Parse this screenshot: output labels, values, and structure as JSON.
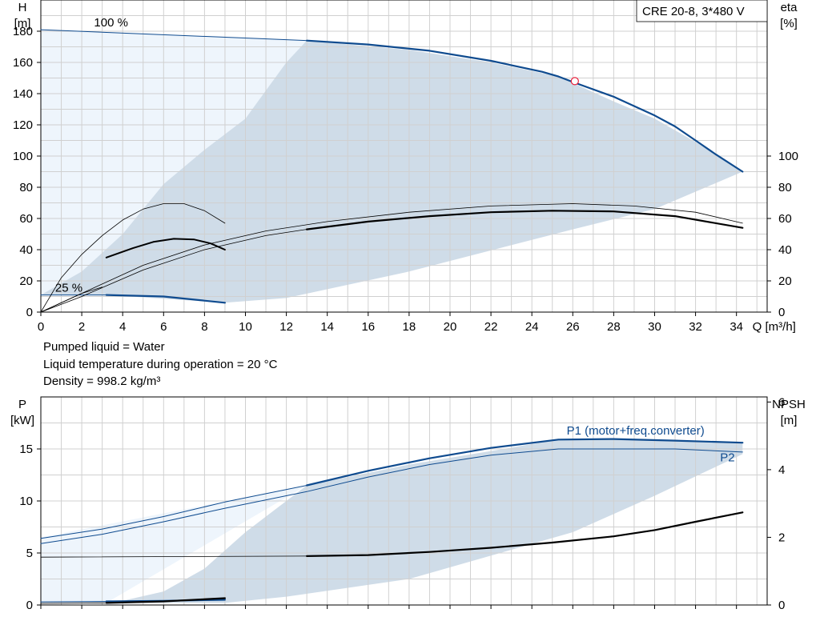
{
  "info_lines": [
    "Pumped liquid = Water",
    "Liquid temperature during operation = 20 °C",
    "Density = 998.2 kg/m³"
  ],
  "chart_data": [
    {
      "id": "head-efficiency",
      "type": "line",
      "title": "CRE 20-8, 3*480 V",
      "x_label": "Q [m³/h]",
      "x_lim": [
        0,
        35.5
      ],
      "x_ticks": [
        0,
        2,
        4,
        6,
        8,
        10,
        12,
        14,
        16,
        18,
        20,
        22,
        24,
        26,
        28,
        30,
        32,
        34
      ],
      "y_left_label": [
        "H",
        "[m]"
      ],
      "y_left_lim": [
        0,
        200
      ],
      "y_left_ticks": [
        0,
        20,
        40,
        60,
        80,
        100,
        120,
        140,
        160,
        180
      ],
      "y_right_label": [
        "eta",
        "[%]"
      ],
      "y_right_ticks": [
        0,
        20,
        40,
        60,
        80,
        100
      ],
      "grid": true,
      "speed_labels": [
        {
          "text": "100 %",
          "x": 2.6,
          "y": 183
        },
        {
          "text": "25 %",
          "x": 0.7,
          "y": 13
        }
      ],
      "operating_point": {
        "x": 26.1,
        "y": 148
      },
      "shaded_region": [
        [
          0,
          181
        ],
        [
          13,
          174
        ],
        [
          12,
          160
        ],
        [
          10,
          124
        ],
        [
          8,
          104
        ],
        [
          6,
          82
        ],
        [
          4,
          50
        ],
        [
          2,
          26
        ],
        [
          0,
          11
        ],
        [
          3.2,
          11
        ],
        [
          9,
          6
        ],
        [
          12,
          9
        ],
        [
          18,
          26
        ],
        [
          26,
          53
        ],
        [
          30,
          66
        ],
        [
          34.3,
          90
        ],
        [
          32,
          109
        ],
        [
          30,
          124
        ],
        [
          28,
          135
        ],
        [
          25.3,
          151
        ],
        [
          22,
          160
        ],
        [
          18,
          168
        ],
        [
          13,
          174
        ],
        [
          0,
          181
        ]
      ],
      "series": [
        {
          "role": "head-100-thin",
          "color": "#0f4b8f",
          "width": 1,
          "points": [
            [
              0,
              181
            ],
            [
              13,
              174
            ]
          ]
        },
        {
          "role": "head-100-operating",
          "color": "#0f4b8f",
          "width": 2.2,
          "points": [
            [
              13,
              174
            ],
            [
              16,
              171.5
            ],
            [
              19,
              167.5
            ],
            [
              22,
              161
            ],
            [
              24.5,
              154
            ],
            [
              25.3,
              151
            ],
            [
              26.1,
              147
            ],
            [
              28,
              138
            ],
            [
              30,
              126
            ],
            [
              31,
              119
            ],
            [
              32,
              110
            ],
            [
              33,
              101
            ],
            [
              34.3,
              90
            ]
          ]
        },
        {
          "role": "head-25-operating",
          "color": "#0f4b8f",
          "width": 2.2,
          "points": [
            [
              3.2,
              11
            ],
            [
              6,
              10
            ],
            [
              9,
              6
            ]
          ]
        },
        {
          "role": "head-25-thin",
          "color": "#0f4b8f",
          "width": 1,
          "points": [
            [
              0,
              11
            ],
            [
              3.2,
              11
            ]
          ]
        },
        {
          "role": "eta-25-thin",
          "color": "#000000",
          "width": 0.8,
          "points": [
            [
              0,
              0
            ],
            [
              1,
              22
            ],
            [
              2,
              37
            ],
            [
              3,
              49
            ],
            [
              4,
              59
            ],
            [
              5,
              66
            ],
            [
              6,
              69.5
            ],
            [
              7,
              69.5
            ],
            [
              8,
              65
            ],
            [
              9,
              57
            ]
          ]
        },
        {
          "role": "eta-25-operating",
          "color": "#000000",
          "width": 2,
          "points": [
            [
              3.2,
              35
            ],
            [
              4.5,
              41
            ],
            [
              5.5,
              45
            ],
            [
              6.5,
              47
            ],
            [
              7.5,
              46.5
            ],
            [
              8.3,
              44
            ],
            [
              9,
              40
            ]
          ]
        },
        {
          "role": "eta-25-low",
          "color": "#000000",
          "width": 0.8,
          "points": [
            [
              0,
              0
            ],
            [
              1,
              6
            ],
            [
              2,
              12
            ],
            [
              3,
              16
            ]
          ]
        },
        {
          "role": "eta-100-upper-thin",
          "color": "#000000",
          "width": 0.8,
          "points": [
            [
              0,
              0
            ],
            [
              2,
              12
            ],
            [
              5,
              30
            ],
            [
              8,
              43
            ],
            [
              11,
              52
            ],
            [
              14,
              58
            ],
            [
              18,
              64
            ],
            [
              22,
              68
            ],
            [
              26,
              69.5
            ],
            [
              29,
              68
            ],
            [
              32,
              64
            ],
            [
              34.3,
              57
            ]
          ]
        },
        {
          "role": "eta-100-lower-thin",
          "color": "#000000",
          "width": 0.8,
          "points": [
            [
              0,
              0
            ],
            [
              2,
              10
            ],
            [
              5,
              27
            ],
            [
              8,
              40
            ],
            [
              11,
              49
            ],
            [
              13,
              53
            ]
          ]
        },
        {
          "role": "eta-100-operating",
          "color": "#000000",
          "width": 2.2,
          "points": [
            [
              13,
              53
            ],
            [
              16,
              58
            ],
            [
              19,
              61.5
            ],
            [
              22,
              64
            ],
            [
              25,
              65
            ],
            [
              28,
              64.5
            ],
            [
              31,
              61.5
            ],
            [
              34.3,
              54
            ]
          ]
        }
      ]
    },
    {
      "id": "power-npsh",
      "type": "line",
      "x_lim": [
        0,
        35.5
      ],
      "y_left_label": [
        "P",
        "[kW]"
      ],
      "y_left_lim": [
        0,
        20
      ],
      "y_left_ticks": [
        0,
        5,
        10,
        15
      ],
      "y_right_label": [
        "NPSH",
        "[m]"
      ],
      "y_right_ticks": [
        0,
        2,
        4,
        6
      ],
      "grid": true,
      "series_labels": [
        {
          "text": "P1 (motor+freq.converter)",
          "x": 25.7,
          "y": 16.4
        },
        {
          "text": "P2",
          "x": 33.2,
          "y": 13.8
        }
      ],
      "shaded_region": [
        [
          0,
          6.5
        ],
        [
          13,
          11.5
        ],
        [
          12,
          10
        ],
        [
          10,
          7
        ],
        [
          8,
          3.5
        ],
        [
          6,
          1.3
        ],
        [
          4,
          0.4
        ],
        [
          2,
          0.2
        ],
        [
          0,
          0.2
        ],
        [
          9,
          0.2
        ],
        [
          12,
          0.8
        ],
        [
          18,
          2.5
        ],
        [
          26,
          7
        ],
        [
          30,
          10.5
        ],
        [
          34.3,
          14.5
        ],
        [
          34.3,
          15.6
        ],
        [
          30,
          15.9
        ],
        [
          25.3,
          15.9
        ],
        [
          22,
          14.8
        ],
        [
          18,
          13.5
        ],
        [
          13,
          11.5
        ],
        [
          0,
          6.5
        ]
      ],
      "series": [
        {
          "role": "p1-100-thin",
          "color": "#0f4b8f",
          "width": 1,
          "points": [
            [
              0,
              6.4
            ],
            [
              3,
              7.3
            ],
            [
              6,
              8.5
            ],
            [
              9,
              9.9
            ],
            [
              13,
              11.5
            ]
          ]
        },
        {
          "role": "p1-100-operating",
          "color": "#0f4b8f",
          "width": 2.2,
          "points": [
            [
              13,
              11.5
            ],
            [
              16,
              12.9
            ],
            [
              19,
              14.1
            ],
            [
              22,
              15.1
            ],
            [
              25.3,
              15.9
            ],
            [
              28,
              15.95
            ],
            [
              31,
              15.8
            ],
            [
              34.3,
              15.6
            ]
          ]
        },
        {
          "role": "p2-100",
          "color": "#0f4b8f",
          "width": 1,
          "points": [
            [
              0,
              5.9
            ],
            [
              3,
              6.8
            ],
            [
              6,
              8.0
            ],
            [
              9,
              9.3
            ],
            [
              13,
              10.9
            ],
            [
              16,
              12.3
            ],
            [
              19,
              13.5
            ],
            [
              22,
              14.4
            ],
            [
              25.3,
              15.0
            ],
            [
              28,
              15.0
            ],
            [
              31,
              15.0
            ],
            [
              34.3,
              14.7
            ]
          ]
        },
        {
          "role": "npsh-thin",
          "color": "#000000",
          "width": 0.8,
          "points": [
            [
              0,
              4.6
            ],
            [
              13,
              4.7
            ]
          ]
        },
        {
          "role": "npsh-operating",
          "color": "#000000",
          "width": 2.2,
          "points": [
            [
              13,
              4.7
            ],
            [
              16,
              4.8
            ],
            [
              19,
              5.1
            ],
            [
              22,
              5.5
            ],
            [
              25,
              6.0
            ],
            [
              28,
              6.6
            ],
            [
              30,
              7.2
            ],
            [
              32,
              8.0
            ],
            [
              34.3,
              8.9
            ]
          ]
        },
        {
          "role": "p-25-operating",
          "color": "#0f4b8f",
          "width": 2.2,
          "points": [
            [
              3.2,
              0.35
            ],
            [
              6,
              0.4
            ],
            [
              9,
              0.5
            ]
          ]
        },
        {
          "role": "npsh-25-operating",
          "color": "#000000",
          "width": 2.2,
          "points": [
            [
              3.2,
              0.2
            ],
            [
              6,
              0.35
            ],
            [
              9,
              0.65
            ]
          ]
        },
        {
          "role": "p-25-thin",
          "color": "#0f4b8f",
          "width": 1,
          "points": [
            [
              0,
              0.3
            ],
            [
              3.2,
              0.35
            ]
          ]
        },
        {
          "role": "npsh-25-thin",
          "color": "#000000",
          "width": 0.8,
          "points": [
            [
              0,
              0.15
            ],
            [
              3.2,
              0.2
            ]
          ]
        }
      ]
    }
  ]
}
